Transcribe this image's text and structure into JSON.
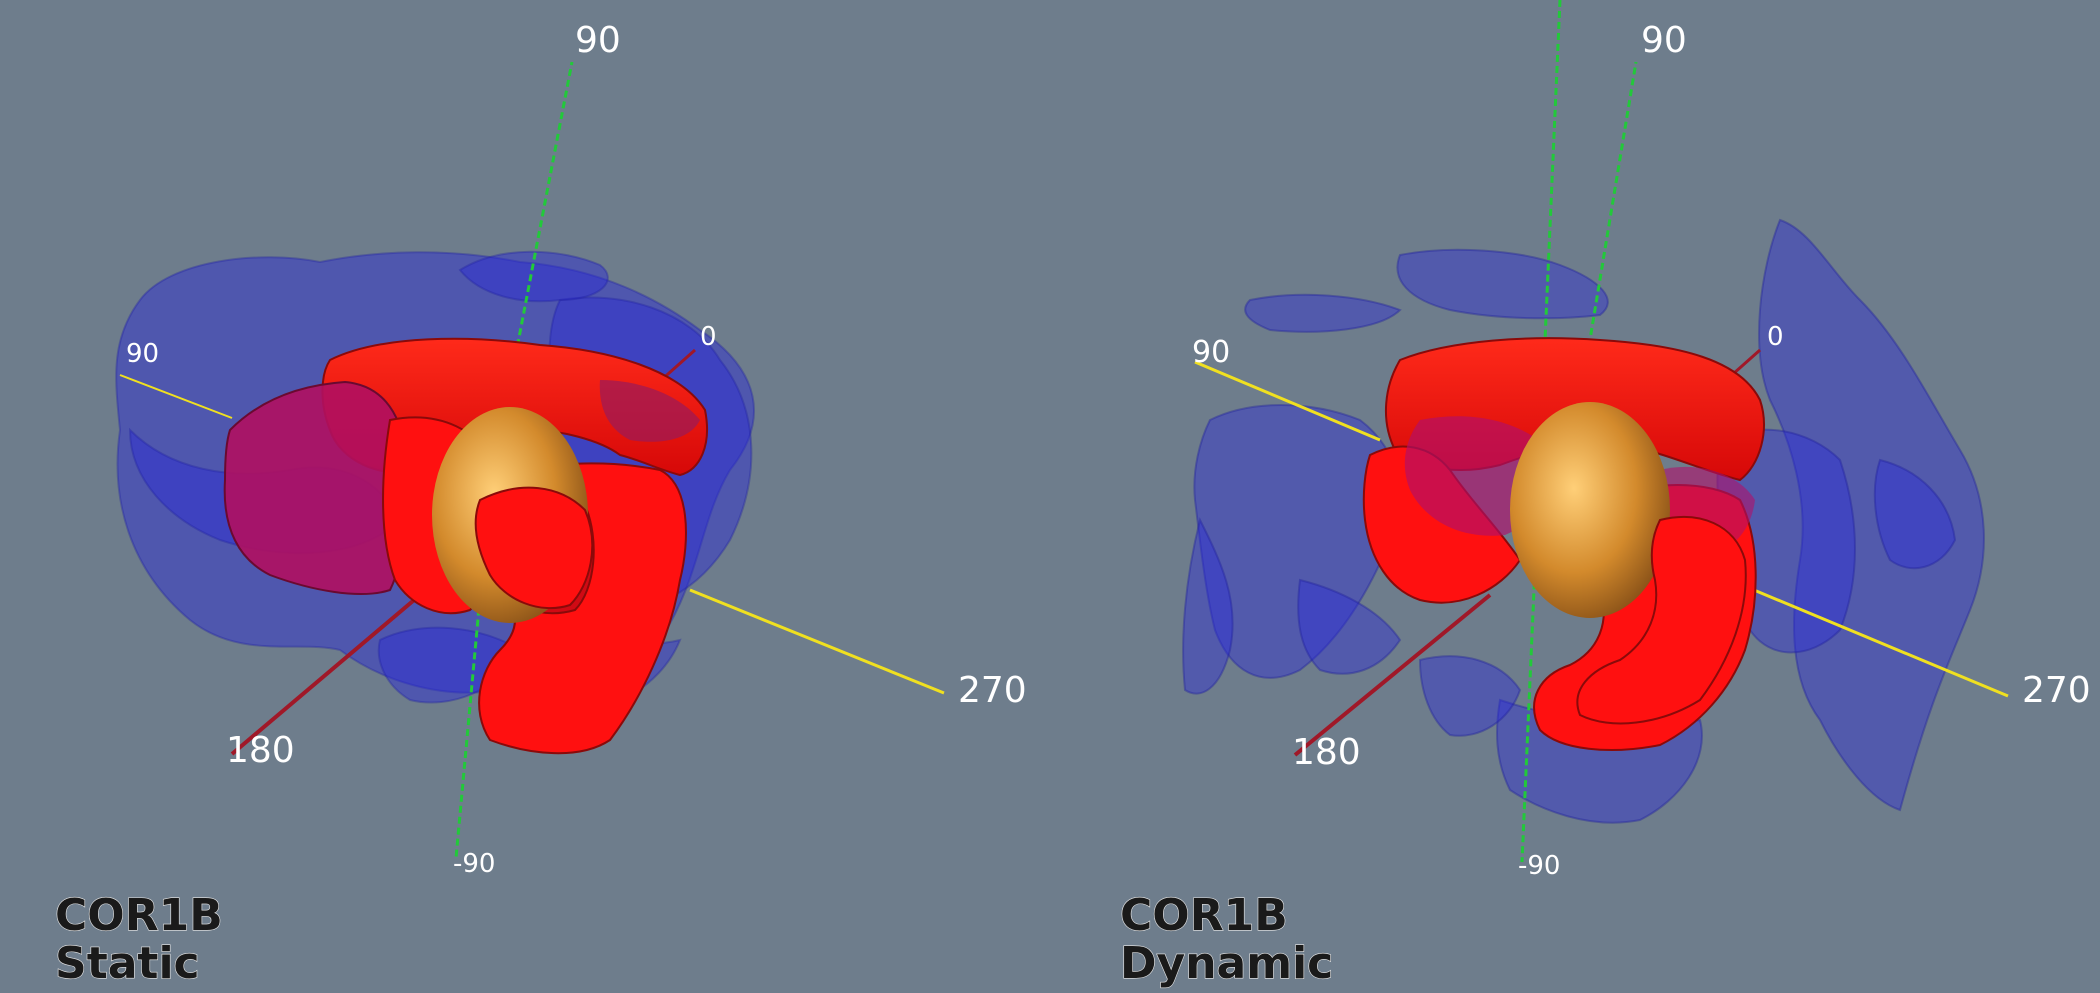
{
  "panels": [
    {
      "id": "static",
      "caption_line1": "COR1B",
      "caption_line2": "Static",
      "axis_labels": {
        "lat_top": "90",
        "lat_bottom": "-90",
        "lon_90": "90",
        "lon_0": "0",
        "lon_180": "180",
        "lon_270": "270"
      }
    },
    {
      "id": "dynamic",
      "caption_line1": "COR1B",
      "caption_line2": "Dynamic",
      "axis_labels": {
        "lat_top": "90",
        "lat_bottom": "-90",
        "lon_90": "90",
        "lon_0": "0",
        "lon_180": "180",
        "lon_270": "270"
      }
    }
  ],
  "colors": {
    "background": "#6e7d8c",
    "outer_surface": "#2a2ad8",
    "inner_surface": "#ff1010",
    "sun_sphere": "#d89030",
    "latitude_axis": "#22c93a",
    "lon_90_270_axis": "#f0e020",
    "lon_0_180_axis": "#a01828"
  }
}
